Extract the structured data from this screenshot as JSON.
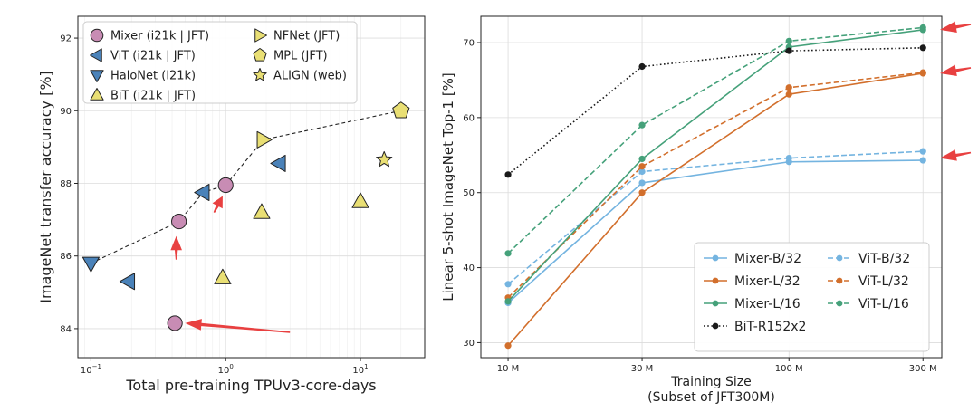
{
  "chart_data": [
    {
      "type": "scatter",
      "xscale": "log",
      "xlabel": "Total pre-training TPUv3-core-days",
      "ylabel": "ImageNet transfer accuracy [%]",
      "xlim": [
        0.08,
        30
      ],
      "ylim": [
        83.2,
        92.6
      ],
      "xticks": [
        {
          "v": 0.1,
          "base": "10",
          "exp": "−1"
        },
        {
          "v": 1,
          "base": "10",
          "exp": "0"
        },
        {
          "v": 10,
          "base": "10",
          "exp": "1"
        }
      ],
      "yticks": [
        84,
        86,
        88,
        90,
        92
      ],
      "legend": [
        {
          "label": "Mixer (i21k | JFT)",
          "marker": "circle",
          "color": "#c88cb4"
        },
        {
          "label": "ViT (i21k | JFT)",
          "marker": "tri-left",
          "color": "#4a82b9"
        },
        {
          "label": "HaloNet (i21k)",
          "marker": "tri-down",
          "color": "#4a82b9"
        },
        {
          "label": "BiT (i21k | JFT)",
          "marker": "tri-up",
          "color": "#e9df74"
        },
        {
          "label": "NFNet (JFT)",
          "marker": "tri-right",
          "color": "#e9df74"
        },
        {
          "label": "MPL (JFT)",
          "marker": "pentagon",
          "color": "#e9df74"
        },
        {
          "label": "ALIGN (web)",
          "marker": "star",
          "color": "#e9df74"
        }
      ],
      "frontier": [
        [
          0.1,
          85.8
        ],
        [
          0.45,
          86.95
        ],
        [
          0.68,
          87.75
        ],
        [
          1.0,
          87.95
        ],
        [
          1.9,
          89.2
        ],
        [
          20,
          90.0
        ]
      ],
      "points": [
        {
          "series": "Mixer",
          "marker": "circle",
          "color": "#c88cb4",
          "x": 0.42,
          "y": 84.15
        },
        {
          "series": "Mixer",
          "marker": "circle",
          "color": "#c88cb4",
          "x": 0.45,
          "y": 86.95
        },
        {
          "series": "Mixer",
          "marker": "circle",
          "color": "#c88cb4",
          "x": 1.0,
          "y": 87.95
        },
        {
          "series": "ViT",
          "marker": "tri-left",
          "color": "#4a82b9",
          "x": 0.19,
          "y": 85.3
        },
        {
          "series": "ViT",
          "marker": "tri-left",
          "color": "#4a82b9",
          "x": 0.68,
          "y": 87.75
        },
        {
          "series": "ViT",
          "marker": "tri-left",
          "color": "#4a82b9",
          "x": 2.5,
          "y": 88.55
        },
        {
          "series": "HaloNet",
          "marker": "tri-down",
          "color": "#4a82b9",
          "x": 0.1,
          "y": 85.8
        },
        {
          "series": "BiT",
          "marker": "tri-up",
          "color": "#e9df74",
          "x": 0.95,
          "y": 85.4
        },
        {
          "series": "BiT",
          "marker": "tri-up",
          "color": "#e9df74",
          "x": 1.85,
          "y": 87.2
        },
        {
          "series": "BiT",
          "marker": "tri-up",
          "color": "#e9df74",
          "x": 10,
          "y": 87.5
        },
        {
          "series": "NFNet",
          "marker": "tri-right",
          "color": "#e9df74",
          "x": 1.9,
          "y": 89.2
        },
        {
          "series": "MPL",
          "marker": "pentagon",
          "color": "#e9df74",
          "x": 20,
          "y": 90.0
        },
        {
          "series": "ALIGN",
          "marker": "star",
          "color": "#e9df74",
          "x": 15,
          "y": 88.65
        }
      ],
      "annotations": [
        {
          "type": "arrow",
          "color": "#e84040",
          "from": [
            3.0,
            83.9
          ],
          "to": [
            0.5,
            84.15
          ]
        },
        {
          "type": "arrow",
          "color": "#e84040",
          "from": [
            0.43,
            85.9
          ],
          "to": [
            0.43,
            86.55
          ]
        },
        {
          "type": "arrow",
          "color": "#e84040",
          "from": [
            0.82,
            87.2
          ],
          "to": [
            0.95,
            87.65
          ]
        }
      ]
    },
    {
      "type": "line",
      "xscale": "log",
      "xlabel": "Training Size",
      "xlabel2": "(Subset of JFT300M)",
      "ylabel": "Linear 5-shot ImageNet Top-1 [%]",
      "xlim": [
        8,
        350
      ],
      "ylim": [
        28,
        73.5
      ],
      "categories": [
        "10 M",
        "30 M",
        "100 M",
        "300 M"
      ],
      "x": [
        10,
        30,
        100,
        300
      ],
      "yticks": [
        30,
        40,
        50,
        60,
        70
      ],
      "series": [
        {
          "name": "Mixer-B/32",
          "color": "#74b4e0",
          "dash": "solid",
          "marker": "dot",
          "values": [
            35.3,
            51.3,
            54.1,
            54.3
          ]
        },
        {
          "name": "ViT-B/32",
          "color": "#74b4e0",
          "dash": "dashed",
          "marker": "dot",
          "values": [
            37.8,
            52.8,
            54.6,
            55.5
          ]
        },
        {
          "name": "Mixer-L/32",
          "color": "#d26f2c",
          "dash": "solid",
          "marker": "dot",
          "values": [
            29.6,
            50.0,
            63.1,
            65.9
          ]
        },
        {
          "name": "ViT-L/32",
          "color": "#d26f2c",
          "dash": "dashed",
          "marker": "dot",
          "values": [
            36.0,
            53.5,
            64.0,
            66.0
          ]
        },
        {
          "name": "Mixer-L/16",
          "color": "#45a17a",
          "dash": "solid",
          "marker": "dot",
          "values": [
            35.5,
            54.5,
            69.4,
            71.7
          ]
        },
        {
          "name": "ViT-L/16",
          "color": "#45a17a",
          "dash": "dashed",
          "marker": "dot",
          "values": [
            41.9,
            59.0,
            70.2,
            72.0
          ]
        },
        {
          "name": "BiT-R152x2",
          "color": "#1a1a1a",
          "dash": "dotted",
          "marker": "dot",
          "values": [
            52.4,
            66.8,
            68.9,
            69.3
          ]
        }
      ],
      "legend_order": [
        "Mixer-B/32",
        "ViT-B/32",
        "Mixer-L/32",
        "ViT-L/32",
        "Mixer-L/16",
        "ViT-L/16",
        "BiT-R152x2"
      ],
      "legend_position": "lower-right",
      "annotations": [
        {
          "type": "arrow",
          "color": "#e84040",
          "target_y": 71.7
        },
        {
          "type": "arrow",
          "color": "#e84040",
          "target_y": 65.9
        },
        {
          "type": "arrow",
          "color": "#e84040",
          "target_y": 54.6
        }
      ]
    }
  ]
}
